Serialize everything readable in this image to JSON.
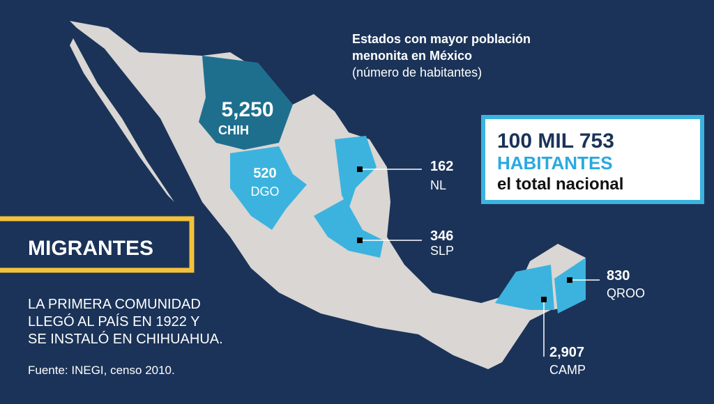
{
  "title": [
    "Estados con mayor población",
    "menonita en México",
    "(número de habitantes)"
  ],
  "total": {
    "line1": "100 MIL 753",
    "line2": "HABITANTES",
    "line3": "el total nacional"
  },
  "section": {
    "heading": "MIGRANTES",
    "text": [
      "LA PRIMERA COMUNIDAD",
      "LLEGÓ AL PAÍS EN 1922 Y",
      "SE INSTALÓ EN CHIHUAHUA."
    ]
  },
  "source": "Fuente: INEGI, censo 2010.",
  "states": [
    {
      "value": "5,250",
      "label": "CHIH"
    },
    {
      "value": "520",
      "label": "DGO"
    },
    {
      "value": "162",
      "label": "NL"
    },
    {
      "value": "346",
      "label": "SLP"
    },
    {
      "value": "830",
      "label": "QROO"
    },
    {
      "value": "2,907",
      "label": "CAMP"
    }
  ]
}
